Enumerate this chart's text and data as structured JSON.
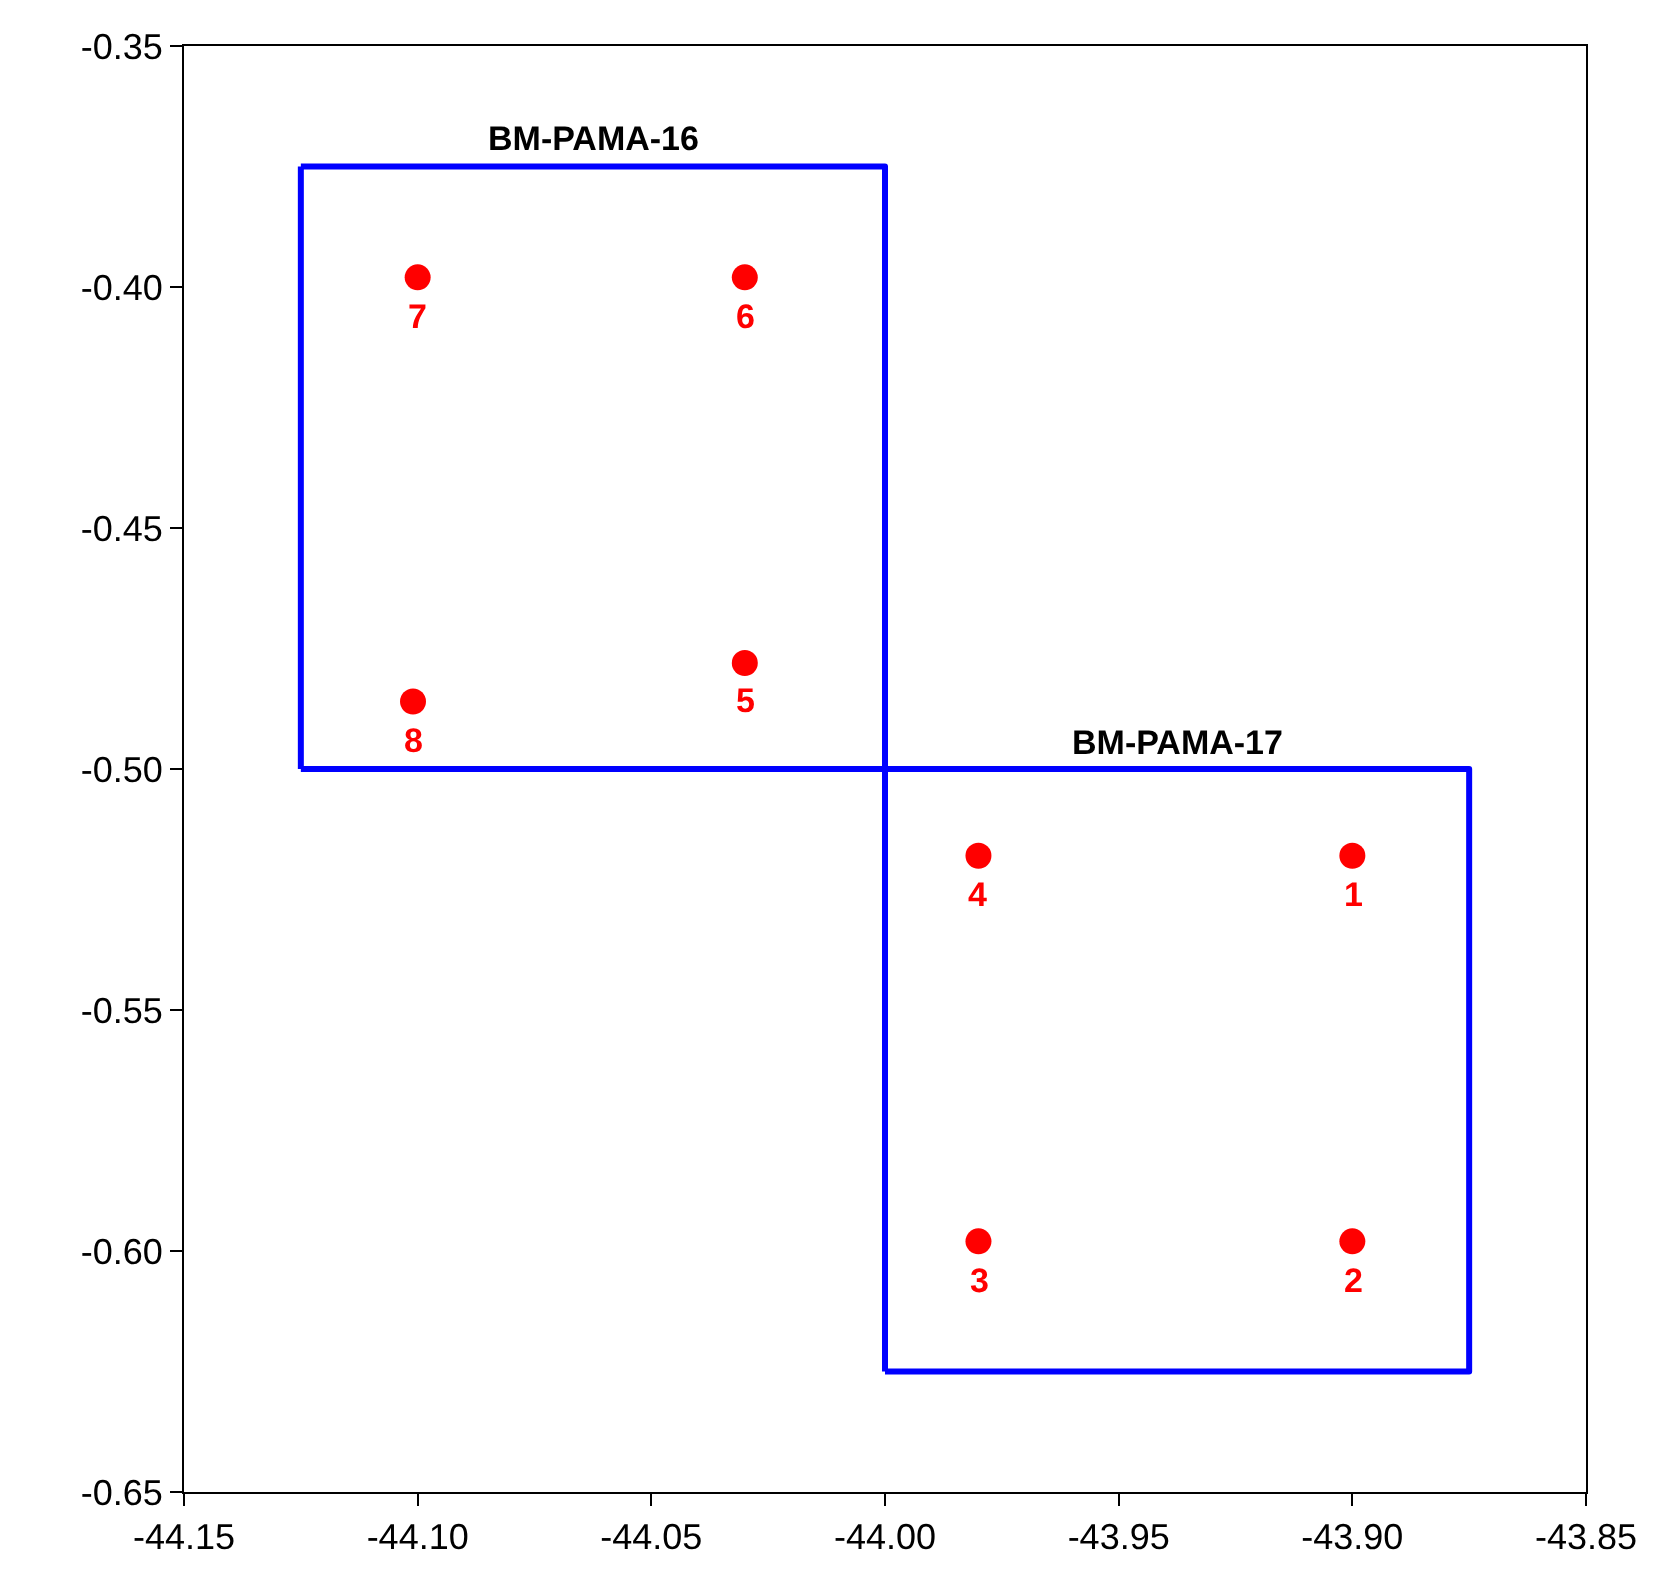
{
  "chart_data": {
    "type": "scatter",
    "series": [
      {
        "type": "line",
        "color": "#0000ff",
        "marker": "none",
        "x": [
          -44.125,
          -44.0,
          -44.0,
          -44.125
        ],
        "values": [
          -0.375,
          -0.375,
          -0.5,
          -0.5
        ]
      },
      {
        "type": "line",
        "color": "#0000ff",
        "marker": "none",
        "x": [
          -44.0,
          -43.875,
          -43.875,
          -44.0
        ],
        "values": [
          -0.5,
          -0.5,
          -0.625,
          -0.625
        ]
      },
      {
        "type": "line",
        "color": "#0000ff",
        "marker": "none",
        "x": [
          -44.125,
          -44.125
        ],
        "values": [
          -0.5,
          -0.375
        ]
      },
      {
        "type": "line",
        "color": "#0000ff",
        "marker": "none",
        "x": [
          -44.0,
          -44.0
        ],
        "values": [
          -0.625,
          -0.5
        ]
      },
      {
        "color": "#ff0000",
        "marker": "circle",
        "x": [
          -43.9,
          -43.9,
          -43.98,
          -43.98,
          -44.03,
          -44.03,
          -44.1,
          -44.101
        ],
        "values": [
          -0.518,
          -0.598,
          -0.598,
          -0.518,
          -0.478,
          -0.398,
          -0.398,
          -0.486
        ]
      }
    ],
    "annotations": [
      "BM-PAMA-16",
      "BM-PAMA-17",
      {
        "text": "1",
        "x": -43.9,
        "y": -0.518
      },
      {
        "text": "2",
        "x": -43.9,
        "y": -0.598
      },
      {
        "text": "3",
        "x": -43.98,
        "y": -0.598
      },
      {
        "text": "4",
        "x": -43.98,
        "y": -0.518
      },
      {
        "text": "5",
        "x": -44.03,
        "y": -0.478
      },
      {
        "text": "6",
        "x": -44.03,
        "y": -0.398
      },
      {
        "text": "7",
        "x": -44.1,
        "y": -0.398
      },
      {
        "text": "8",
        "x": -44.101,
        "y": -0.486
      }
    ],
    "xlim": [
      -44.15,
      -43.85
    ],
    "xticks": [
      {
        "value": -44.15,
        "label": "-44.15"
      },
      {
        "value": -44.1,
        "label": "-44.10"
      },
      {
        "value": -44.05,
        "label": "-44.05"
      },
      {
        "value": -44.0,
        "label": "-44.00"
      },
      {
        "value": -43.95,
        "label": "-43.95"
      },
      {
        "value": -43.9,
        "label": "-43.90"
      },
      {
        "value": -43.85,
        "label": "-43.85"
      }
    ],
    "ylim": [
      -0.65,
      -0.35
    ],
    "yticks": [
      {
        "value": -0.65,
        "label": "-0.65"
      },
      {
        "value": -0.6,
        "label": "-0.60"
      },
      {
        "value": -0.55,
        "label": "-0.55"
      },
      {
        "value": -0.5,
        "label": "-0.50"
      },
      {
        "value": -0.45,
        "label": "-0.45"
      },
      {
        "value": -0.4,
        "label": "-0.40"
      },
      {
        "value": -0.35,
        "label": "-0.35"
      }
    ]
  }
}
